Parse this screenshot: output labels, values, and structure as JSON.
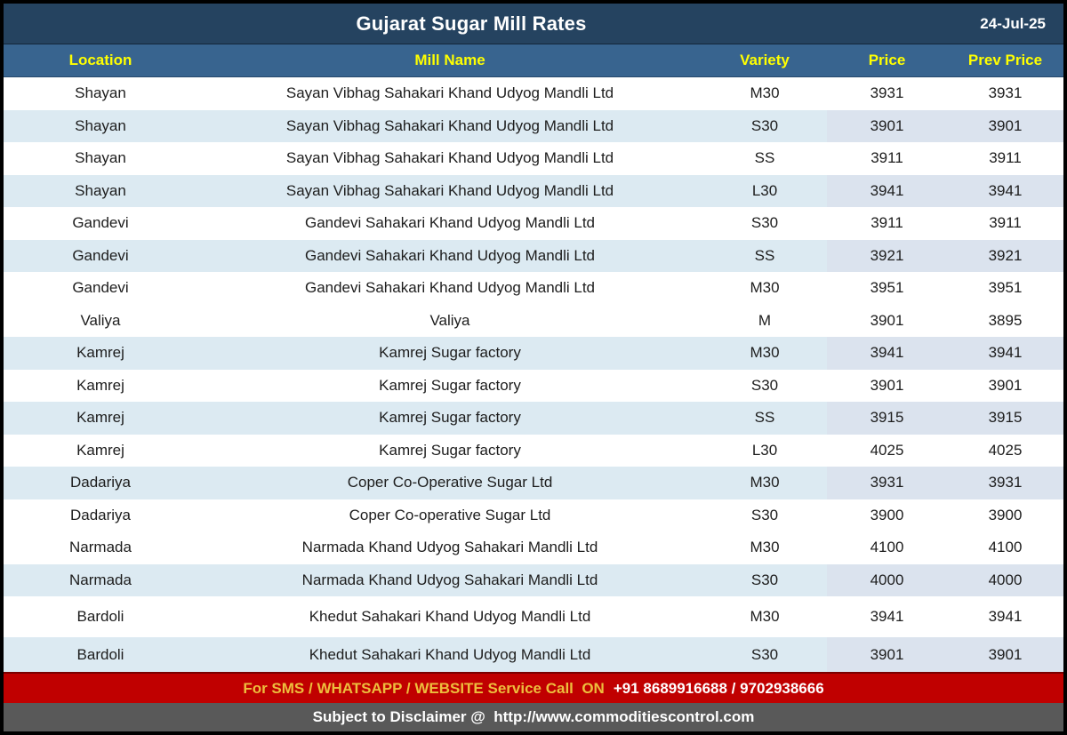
{
  "title_bar": {
    "title": "Gujarat Sugar Mill Rates",
    "date": "24-Jul-25"
  },
  "table": {
    "columns": [
      "Location",
      "Mill Name",
      "Variety",
      "Price",
      "Prev Price"
    ],
    "rows": [
      {
        "location": "Shayan",
        "mill": "Sayan Vibhag Sahakari Khand Udyog Mandli Ltd",
        "variety": "M30",
        "price": "3931",
        "prev": "3931",
        "shade": "white"
      },
      {
        "location": "Shayan",
        "mill": "Sayan Vibhag Sahakari Khand Udyog Mandli Ltd",
        "variety": "S30",
        "price": "3901",
        "prev": "3901",
        "shade": "blue"
      },
      {
        "location": "Shayan",
        "mill": "Sayan Vibhag Sahakari Khand Udyog Mandli Ltd",
        "variety": "SS",
        "price": "3911",
        "prev": "3911",
        "shade": "white"
      },
      {
        "location": "Shayan",
        "mill": "Sayan Vibhag Sahakari Khand Udyog Mandli Ltd",
        "variety": "L30",
        "price": "3941",
        "prev": "3941",
        "shade": "blue"
      },
      {
        "location": "Gandevi",
        "mill": "Gandevi Sahakari Khand Udyog Mandli Ltd",
        "variety": "S30",
        "price": "3911",
        "prev": "3911",
        "shade": "white"
      },
      {
        "location": "Gandevi",
        "mill": "Gandevi Sahakari Khand Udyog Mandli Ltd",
        "variety": "SS",
        "price": "3921",
        "prev": "3921",
        "shade": "blue"
      },
      {
        "location": "Gandevi",
        "mill": "Gandevi Sahakari Khand Udyog Mandli Ltd",
        "variety": "M30",
        "price": "3951",
        "prev": "3951",
        "shade": "white"
      },
      {
        "location": "Valiya",
        "mill": "Valiya",
        "variety": "M",
        "price": "3901",
        "prev": "3895",
        "shade": "white"
      },
      {
        "location": "Kamrej",
        "mill": "Kamrej Sugar factory",
        "variety": "M30",
        "price": "3941",
        "prev": "3941",
        "shade": "blue"
      },
      {
        "location": "Kamrej",
        "mill": "Kamrej Sugar factory",
        "variety": "S30",
        "price": "3901",
        "prev": "3901",
        "shade": "white"
      },
      {
        "location": "Kamrej",
        "mill": "Kamrej Sugar factory",
        "variety": "SS",
        "price": "3915",
        "prev": "3915",
        "shade": "blue"
      },
      {
        "location": "Kamrej",
        "mill": "Kamrej Sugar factory",
        "variety": "L30",
        "price": "4025",
        "prev": "4025",
        "shade": "white"
      },
      {
        "location": "Dadariya",
        "mill": "Coper Co-Operative Sugar Ltd",
        "variety": "M30",
        "price": "3931",
        "prev": "3931",
        "shade": "blue"
      },
      {
        "location": "Dadariya",
        "mill": "Coper Co-operative Sugar Ltd",
        "variety": "S30",
        "price": "3900",
        "prev": "3900",
        "shade": "white"
      },
      {
        "location": "Narmada",
        "mill": "Narmada Khand Udyog Sahakari Mandli Ltd",
        "variety": "M30",
        "price": "4100",
        "prev": "4100",
        "shade": "white"
      },
      {
        "location": "Narmada",
        "mill": "Narmada Khand Udyog Sahakari Mandli Ltd",
        "variety": "S30",
        "price": "4000",
        "prev": "4000",
        "shade": "blue"
      },
      {
        "location": "Bardoli",
        "mill": "Khedut Sahakari Khand Udyog Mandli Ltd",
        "variety": "M30",
        "price": "3941",
        "prev": "3941",
        "shade": "white"
      },
      {
        "location": "Bardoli",
        "mill": "Khedut Sahakari Khand Udyog Mandli Ltd",
        "variety": "S30",
        "price": "3901",
        "prev": "3901",
        "shade": "blue"
      }
    ]
  },
  "service_banner": {
    "label": "For SMS / WHATSAPP / WEBSITE Service Call  ON",
    "numbers": "+91 8689916688 / 9702938666"
  },
  "disclaimer_bar": {
    "text": "Subject to Disclaimer @  http://www.commoditiescontrol.com"
  },
  "colors": {
    "title_bar_bg": "#254360",
    "header_bg": "#38648F",
    "header_text": "#FFFF00",
    "row_alt_bg": "#DCEAF2",
    "row_alt_price_bg": "#DBE3EE",
    "banner_bg": "#C00000",
    "banner_label_text": "#EDBE3D",
    "banner_numbers_text": "#FFFFFF",
    "disclaimer_bg": "#595959",
    "outer_border": "#000000"
  }
}
